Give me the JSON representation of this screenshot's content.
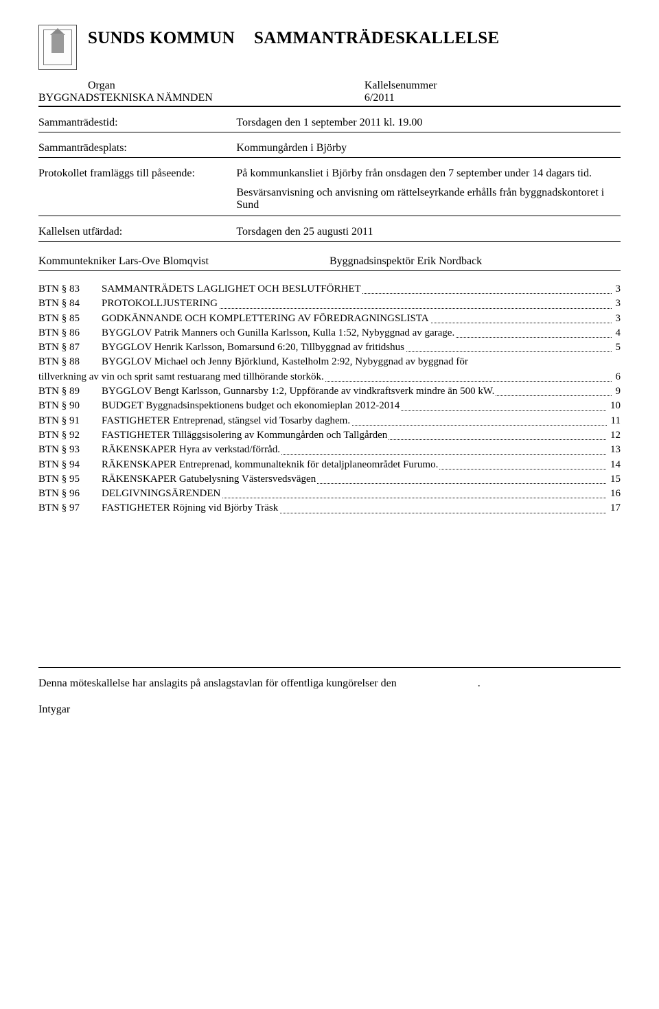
{
  "header": {
    "org": "SUNDS KOMMUN",
    "doc_type": "SAMMANTRÄDESKALLELSE",
    "organ_label": "Organ",
    "organ_name": "BYGGNADSTEKNISKA NÄMNDEN",
    "kallelse_label": "Kallelsenummer",
    "kallelse_value": "6/2011"
  },
  "rows": {
    "tid_label": "Sammanträdestid:",
    "tid_value": "Torsdagen den 1 september 2011 kl. 19.00",
    "plats_label": "Sammanträdesplats:",
    "plats_value": "Kommungården i Björby",
    "prot_label": "Protokollet framläggs till påseende:",
    "prot_value": "På kommunkansliet i Björby från onsdagen den 7 september under 14 dagars tid.",
    "besvar_value": "Besvärsanvisning och anvisning om rättelseyrkande erhålls från byggnadskontoret i Sund",
    "utfardad_label": "Kallelsen utfärdad:",
    "utfardad_value": "Torsdagen den 25 augusti 2011"
  },
  "sign": {
    "left": "Kommuntekniker Lars-Ove Blomqvist",
    "right": "Byggnadsinspektör Erik Nordback"
  },
  "toc": [
    {
      "code": "BTN § 83",
      "title": "SAMMANTRÄDETS LAGLIGHET OCH BESLUTFÖRHET",
      "page": "3"
    },
    {
      "code": "BTN § 84",
      "title": "PROTOKOLLJUSTERING",
      "page": "3"
    },
    {
      "code": "BTN § 85",
      "title": "GODKÄNNANDE OCH KOMPLETTERING AV FÖREDRAGNINGSLISTA",
      "page": "3"
    },
    {
      "code": "BTN § 86",
      "title": "BYGGLOV  Patrik Manners och Gunilla Karlsson, Kulla 1:52, Nybyggnad av garage.",
      "page": "4"
    },
    {
      "code": "BTN § 87",
      "title": "BYGGLOV  Henrik Karlsson, Bomarsund 6:20, Tillbyggnad av fritidshus",
      "page": "5"
    },
    {
      "code": "BTN § 88",
      "title": "BYGGLOV  Michael och Jenny Björklund, Kastelholm 2:92, Nybyggnad av byggnad för",
      "noleader": true
    },
    {
      "continuation": true,
      "title": "tillverkning av vin och sprit samt restuarang med tillhörande storkök.",
      "page": "6",
      "outdent": true
    },
    {
      "code": "BTN § 89",
      "title": "BYGGLOV  Bengt Karlsson, Gunnarsby 1:2, Uppförande av vindkraftsverk mindre än 500 kW.",
      "page": "9",
      "tight": true
    },
    {
      "code": "BTN § 90",
      "title": "BUDGET  Byggnadsinspektionens budget och ekonomieplan 2012-2014",
      "page": "10"
    },
    {
      "code": "BTN § 91",
      "title": "FASTIGHETER  Entreprenad, stängsel vid Tosarby daghem.",
      "page": "11"
    },
    {
      "code": "BTN § 92",
      "title": "FASTIGHETER  Tilläggsisolering av Kommungården och Tallgården",
      "page": "12"
    },
    {
      "code": "BTN § 93",
      "title": "RÄKENSKAPER  Hyra av verkstad/förråd.",
      "page": "13"
    },
    {
      "code": "BTN § 94",
      "title": "RÄKENSKAPER  Entreprenad, kommunalteknik för detaljplaneområdet Furumo.",
      "page": "14"
    },
    {
      "code": "BTN § 95",
      "title": "RÄKENSKAPER  Gatubelysning Västersvedsvägen",
      "page": "15"
    },
    {
      "code": "BTN § 96",
      "title": "DELGIVNINGSÄRENDEN",
      "page": "16"
    },
    {
      "code": "BTN § 97",
      "title": "FASTIGHETER Röjning vid Björby Träsk",
      "page": "17"
    }
  ],
  "footer": {
    "line1": "Denna möteskallelse har anslagits på anslagstavlan för offentliga kungörelser den",
    "period": ".",
    "line2": "Intygar"
  }
}
